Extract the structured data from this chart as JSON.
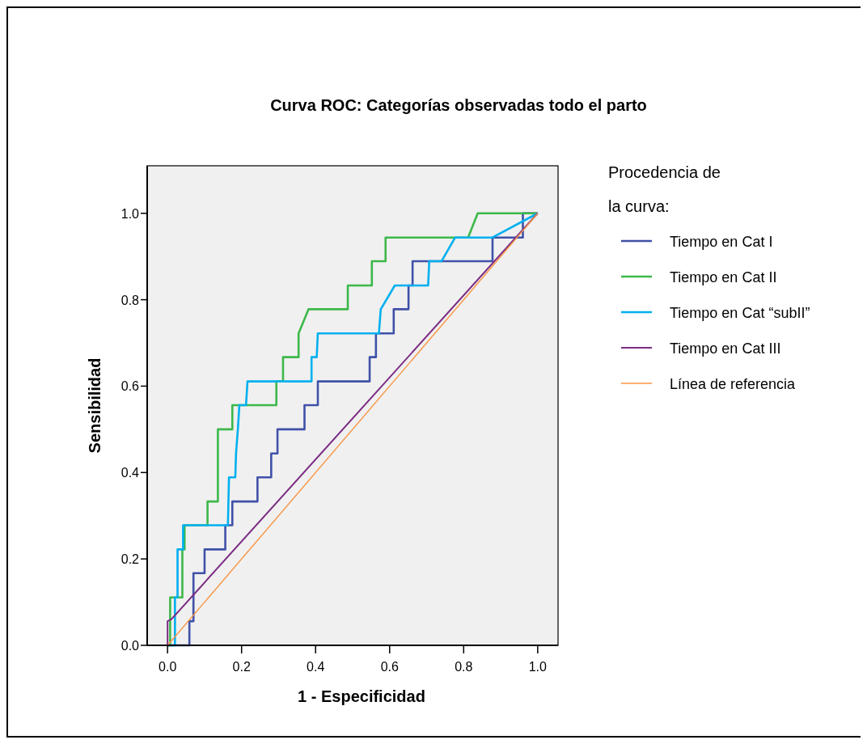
{
  "chart_data": {
    "type": "line",
    "title": "Curva ROC:  Categorías observadas todo el parto",
    "xlabel": "1 - Especificidad",
    "ylabel": "Sensibilidad",
    "legend_title": "Procedencia de la curva:",
    "legend": "right",
    "xlim": [
      -0.055,
      1.055
    ],
    "ylim": [
      0,
      1.11
    ],
    "xticks": [
      {
        "value": 0,
        "label": "0.0"
      },
      {
        "value": 0.2,
        "label": "0.2"
      },
      {
        "value": 0.4,
        "label": "0.4"
      },
      {
        "value": 0.6,
        "label": "0.6"
      },
      {
        "value": 0.8,
        "label": "0.8"
      },
      {
        "value": 1,
        "label": "1.0"
      }
    ],
    "yticks": [
      {
        "value": 0,
        "label": "0.0"
      },
      {
        "value": 0.2,
        "label": "0.2"
      },
      {
        "value": 0.4,
        "label": "0.4"
      },
      {
        "value": 0.6,
        "label": "0.6"
      },
      {
        "value": 0.8,
        "label": "0.8"
      },
      {
        "value": 1,
        "label": "1.0"
      }
    ],
    "series": [
      {
        "name": "Tiempo en Cat I",
        "color": "#3f51a8",
        "x": [
          0,
          0.059,
          0.059,
          0.07,
          0.07,
          0.1,
          0.1,
          0.156,
          0.156,
          0.175,
          0.175,
          0.243,
          0.243,
          0.28,
          0.28,
          0.297,
          0.297,
          0.37,
          0.37,
          0.406,
          0.406,
          0.546,
          0.546,
          0.563,
          0.563,
          0.611,
          0.611,
          0.651,
          0.651,
          0.662,
          0.662,
          0.878,
          0.878,
          0.96,
          0.96,
          1
        ],
        "values": [
          0,
          0,
          0.056,
          0.056,
          0.167,
          0.167,
          0.222,
          0.222,
          0.278,
          0.278,
          0.333,
          0.333,
          0.389,
          0.389,
          0.444,
          0.444,
          0.5,
          0.5,
          0.556,
          0.556,
          0.611,
          0.611,
          0.667,
          0.667,
          0.722,
          0.722,
          0.778,
          0.778,
          0.833,
          0.833,
          0.889,
          0.889,
          0.944,
          0.944,
          1,
          1
        ]
      },
      {
        "name": "Tiempo en Cat II",
        "color": "#3cb84a",
        "x": [
          0,
          0.007,
          0.007,
          0.04,
          0.04,
          0.046,
          0.046,
          0.108,
          0.108,
          0.136,
          0.136,
          0.175,
          0.175,
          0.294,
          0.294,
          0.312,
          0.312,
          0.354,
          0.354,
          0.381,
          0.487,
          0.487,
          0.552,
          0.552,
          0.589,
          0.589,
          0.812,
          0.838,
          1
        ],
        "values": [
          0,
          0,
          0.111,
          0.111,
          0.222,
          0.222,
          0.278,
          0.278,
          0.333,
          0.333,
          0.5,
          0.5,
          0.556,
          0.556,
          0.611,
          0.611,
          0.667,
          0.667,
          0.722,
          0.778,
          0.778,
          0.833,
          0.833,
          0.889,
          0.889,
          0.944,
          0.944,
          1,
          1
        ]
      },
      {
        "name": "Tiempo en Cat “subII”",
        "color": "#00b0f0",
        "x": [
          0,
          0.02,
          0.02,
          0.027,
          0.027,
          0.042,
          0.042,
          0.163,
          0.166,
          0.183,
          0.185,
          0.19,
          0.194,
          0.212,
          0.216,
          0.389,
          0.389,
          0.403,
          0.406,
          0.571,
          0.576,
          0.614,
          0.704,
          0.707,
          0.74,
          0.777,
          0.878,
          1
        ],
        "values": [
          0,
          0,
          0.111,
          0.111,
          0.222,
          0.222,
          0.278,
          0.278,
          0.389,
          0.389,
          0.444,
          0.5,
          0.556,
          0.556,
          0.611,
          0.611,
          0.667,
          0.667,
          0.722,
          0.722,
          0.778,
          0.833,
          0.833,
          0.889,
          0.889,
          0.944,
          0.944,
          1
        ]
      },
      {
        "name": "Tiempo en Cat III",
        "color": "#7b2c83",
        "x": [
          0,
          0,
          0.01,
          1
        ],
        "values": [
          0,
          0.056,
          0.06,
          1
        ]
      },
      {
        "name": "Línea de referencia",
        "color": "#f79646",
        "x": [
          0,
          1
        ],
        "values": [
          0,
          1
        ]
      }
    ]
  }
}
